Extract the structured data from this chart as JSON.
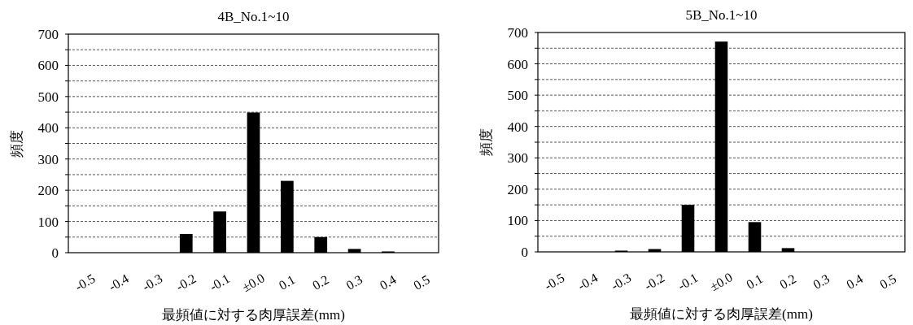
{
  "chart_data": [
    {
      "type": "bar",
      "title": "4B_No.1~10",
      "xlabel": "最頻値に対する肉厚誤差(mm)",
      "ylabel": "頻度",
      "categories": [
        "-0.5",
        "-0.4",
        "-0.3",
        "-0.2",
        "-0.1",
        "±0.0",
        "0.1",
        "0.2",
        "0.3",
        "0.4",
        "0.5"
      ],
      "values": [
        0,
        0,
        0,
        60,
        132,
        449,
        230,
        50,
        12,
        4,
        0
      ],
      "color": "#000000",
      "ylim": [
        0,
        700
      ],
      "yticks": [
        0,
        {
          "value": 50,
          "label": null
        },
        100,
        {
          "value": 150,
          "label": null
        },
        200,
        {
          "value": 250,
          "label": null
        },
        300,
        {
          "value": 350,
          "label": null
        },
        400,
        {
          "value": 450,
          "label": null
        },
        500,
        {
          "value": 550,
          "label": null
        },
        600,
        {
          "value": 650,
          "label": null
        },
        700
      ],
      "grid": "y"
    },
    {
      "type": "bar",
      "title": "5B_No.1~10",
      "xlabel": "最頻値に対する肉厚誤差(mm)",
      "ylabel": "頻度",
      "categories": [
        "-0.5",
        "-0.4",
        "-0.3",
        "-0.2",
        "-0.1",
        "±0.0",
        "0.1",
        "0.2",
        "0.3",
        "0.4",
        "0.5"
      ],
      "values": [
        0,
        0,
        4,
        9,
        150,
        671,
        95,
        12,
        0,
        0,
        0
      ],
      "color": "#000000",
      "ylim": [
        0,
        700
      ],
      "yticks": [
        0,
        {
          "value": 50,
          "label": null
        },
        100,
        {
          "value": 150,
          "label": null
        },
        200,
        {
          "value": 250,
          "label": null
        },
        300,
        {
          "value": 350,
          "label": null
        },
        400,
        {
          "value": 450,
          "label": null
        },
        500,
        {
          "value": 550,
          "label": null
        },
        600,
        {
          "value": 650,
          "label": null
        },
        700
      ],
      "grid": "y"
    }
  ]
}
